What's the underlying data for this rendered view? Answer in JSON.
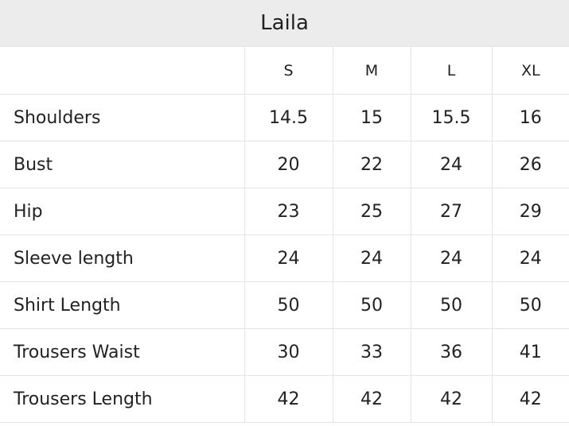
{
  "title": "Laila",
  "columns": [
    "S",
    "M",
    "L",
    "XL"
  ],
  "rows": [
    {
      "label": "Shoulders",
      "values": [
        14.5,
        15,
        15.5,
        16
      ]
    },
    {
      "label": "Bust",
      "values": [
        20,
        22,
        24,
        26
      ]
    },
    {
      "label": "Hip",
      "values": [
        23,
        25,
        27,
        29
      ]
    },
    {
      "label": "Sleeve length",
      "values": [
        24,
        24,
        24,
        24
      ]
    },
    {
      "label": "Shirt Length",
      "values": [
        50,
        50,
        50,
        50
      ]
    },
    {
      "label": "Trousers Waist",
      "values": [
        30,
        33,
        36,
        41
      ]
    },
    {
      "label": "Trousers Length",
      "values": [
        42,
        42,
        42,
        42
      ]
    }
  ]
}
